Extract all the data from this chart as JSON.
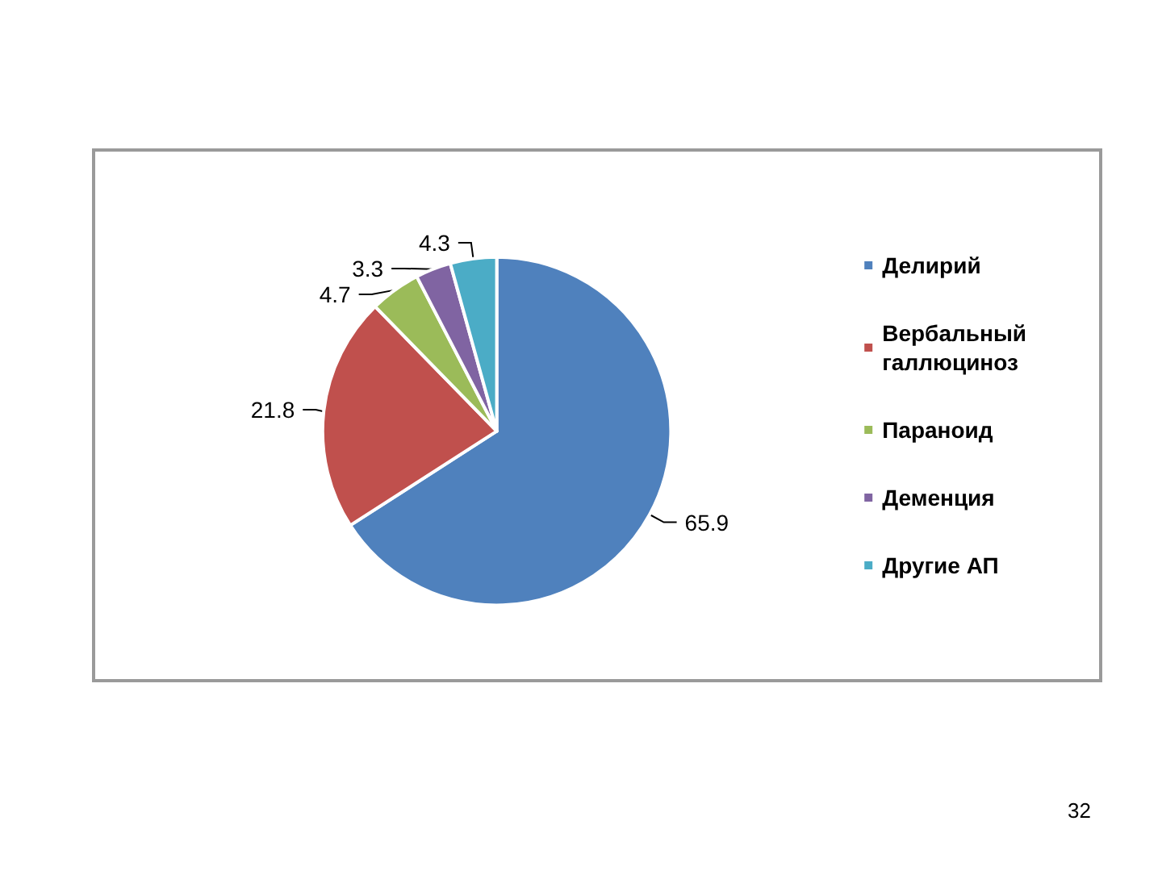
{
  "chart_data": {
    "type": "pie",
    "categories": [
      "Делирий",
      "Вербальный галлюциноз",
      "Параноид",
      "Деменция",
      "Другие АП"
    ],
    "values": [
      65.9,
      21.8,
      4.7,
      3.3,
      4.3
    ],
    "colors": [
      "#4f81bd",
      "#c0504d",
      "#9bbb59",
      "#8064a2",
      "#4bacc6"
    ],
    "data_labels": true,
    "legend": "right",
    "annotations": [
      "32"
    ]
  }
}
